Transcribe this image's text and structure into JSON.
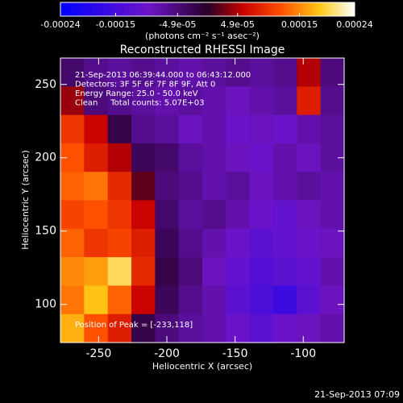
{
  "chart_data": {
    "type": "heatmap",
    "title": "Reconstructed RHESSI Image",
    "xlabel": "Heliocentric X (arcsec)",
    "ylabel": "Heliocentric Y (arcsec)",
    "xlim": [
      -278,
      -70
    ],
    "ylim": [
      74,
      268
    ],
    "xticks": [
      -250,
      -200,
      -150,
      -100
    ],
    "yticks": [
      100,
      150,
      200,
      250
    ],
    "zlim": [
      -0.00024,
      0.00024
    ],
    "colorbar_ticks": [
      -0.00024,
      -0.00015,
      {
        "value": -4.9e-05,
        "label": "-4.9e-05"
      },
      {
        "value": 4.9e-05,
        "label": "4.9e-05"
      },
      0.00015,
      0.00024
    ],
    "colorbar_label": "(photons cm⁻² s⁻¹ asec⁻²)",
    "annotations": [
      "21-Sep-2013 06:39:44.000 to 06:43:12.000",
      "Detectors: 3F 5F 6F 7F 8F 9F, Att 0",
      "Energy Range: 25.0 - 50.0 keV",
      "Clean     Total counts: 5.07E+03"
    ],
    "peak_label": "Position of Peak = [-233,118]",
    "timestamp": "21-Sep-2013 07:09",
    "z": [
      [
        -4e-05,
        -6e-05,
        -7e-05,
        -6e-05,
        -7e-05,
        -8e-05,
        -7e-05,
        -6e-05,
        -7e-05,
        -6e-05,
        5e-05,
        -5e-05
      ],
      [
        4e-05,
        -5e-05,
        -6e-05,
        -7e-05,
        -8e-05,
        -7e-05,
        -8e-05,
        -9e-05,
        -8e-05,
        -7e-05,
        8e-05,
        -6e-05
      ],
      [
        0.0001,
        6e-05,
        -2e-05,
        -6e-05,
        -7e-05,
        -9e-05,
        -8e-05,
        -0.0001,
        -9e-05,
        -0.0001,
        -8e-05,
        -7e-05
      ],
      [
        0.00012,
        8e-05,
        5e-05,
        -3e-05,
        -4e-05,
        -7e-05,
        -8e-05,
        -9e-05,
        -0.0001,
        -8e-05,
        -9e-05,
        -7e-05
      ],
      [
        0.00013,
        0.00014,
        9e-05,
        2e-05,
        -5e-05,
        -6e-05,
        -8e-05,
        -7e-05,
        -9e-05,
        -8e-05,
        -7e-05,
        -8e-05
      ],
      [
        0.00011,
        0.00012,
        0.0001,
        6e-05,
        -4e-05,
        -7e-05,
        -6e-05,
        -8e-05,
        -0.0001,
        -0.00011,
        -9e-05,
        -8e-05
      ],
      [
        0.00013,
        0.0001,
        0.00011,
        8e-05,
        -3e-05,
        -6e-05,
        -8e-05,
        -0.0001,
        -0.00012,
        -0.00011,
        -0.0001,
        -9e-05
      ],
      [
        0.00015,
        0.00016,
        0.0002,
        9e-05,
        -2e-05,
        -5e-05,
        -9e-05,
        -0.00011,
        -0.00013,
        -0.00012,
        -0.00011,
        -8e-05
      ],
      [
        0.00014,
        0.00018,
        0.00013,
        6e-05,
        -3e-05,
        -6e-05,
        -8e-05,
        -0.00012,
        -0.00014,
        -0.00016,
        -0.00012,
        -9e-05
      ],
      [
        0.00017,
        0.00012,
        8e-05,
        -2e-05,
        -5e-05,
        -7e-05,
        -8e-05,
        -0.0001,
        -0.00012,
        -0.0001,
        -9e-05,
        -8e-05
      ]
    ]
  }
}
